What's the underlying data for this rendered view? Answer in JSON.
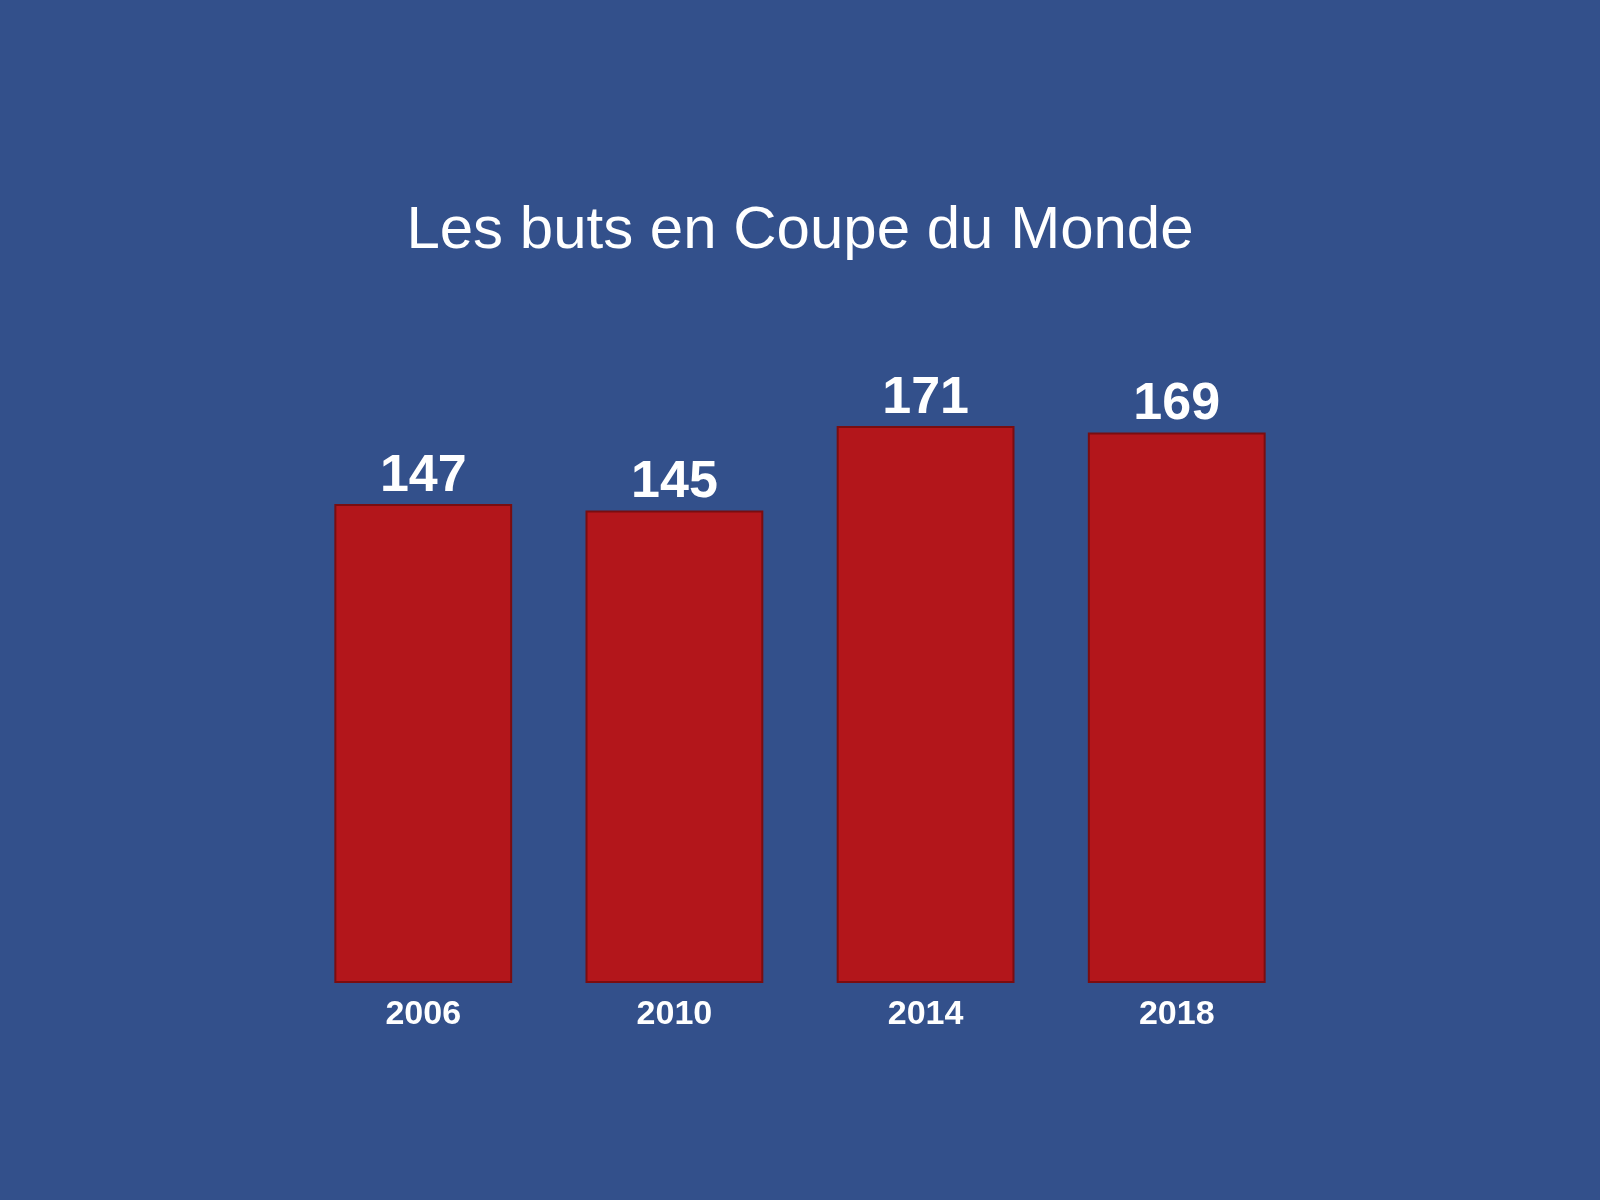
{
  "chart_data": {
    "type": "bar",
    "title": "Les buts en Coupe du Monde",
    "categories": [
      "2006",
      "2010",
      "2014",
      "2018"
    ],
    "values": [
      147,
      145,
      171,
      169
    ],
    "color": "#b3161b",
    "data_labels": true
  }
}
